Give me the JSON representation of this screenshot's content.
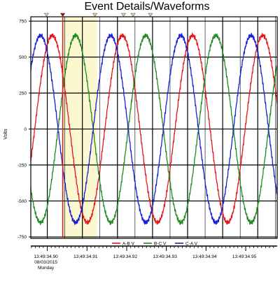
{
  "chart_data": {
    "type": "line",
    "title": "Event Details/Waveforms",
    "ylabel": "Volts",
    "xlabel": "",
    "ylim": [
      -760,
      780
    ],
    "y_ticks": [
      750,
      500,
      250,
      0,
      -250,
      -500,
      -750
    ],
    "x_ticks": [
      {
        "t": 0.0,
        "label": "13:49:34.90"
      },
      {
        "t": 0.00943,
        "label": "13:49:34.91"
      },
      {
        "t": 0.01886,
        "label": "13:49:34.92"
      },
      {
        "t": 0.02829,
        "label": "13:49:34.93"
      },
      {
        "t": 0.03771,
        "label": "13:49:34.94"
      },
      {
        "t": 0.04714,
        "label": "13:49:34.95"
      }
    ],
    "date_label": "08/03/2015",
    "day_label": "Monday",
    "xlim": [
      -0.00392,
      0.05462
    ],
    "grid": true,
    "legend_placement": "bottom",
    "waveform": {
      "amplitude": 650,
      "frequency_hz": 60
    },
    "series": [
      {
        "name": "A-B V",
        "color": "#e8141b",
        "phase_zero_crossing_up_t": -0.00299
      },
      {
        "name": "B-C V",
        "color": "#1e8c1e",
        "phase_zero_crossing_up_t": 0.00256
      },
      {
        "name": "C-A V",
        "color": "#1a1fd8",
        "phase_zero_crossing_up_t": -0.00577
      }
    ],
    "cursor_t": 0.00367,
    "cursor_color": "#d42020",
    "highlight_band_t": [
      0.00367,
      0.01179
    ],
    "highlight_color": "#fbf7cf",
    "event_markers_t": [
      -0.0002,
      0.00367,
      0.01132,
      0.01812,
      0.02037,
      0.0245
    ]
  }
}
